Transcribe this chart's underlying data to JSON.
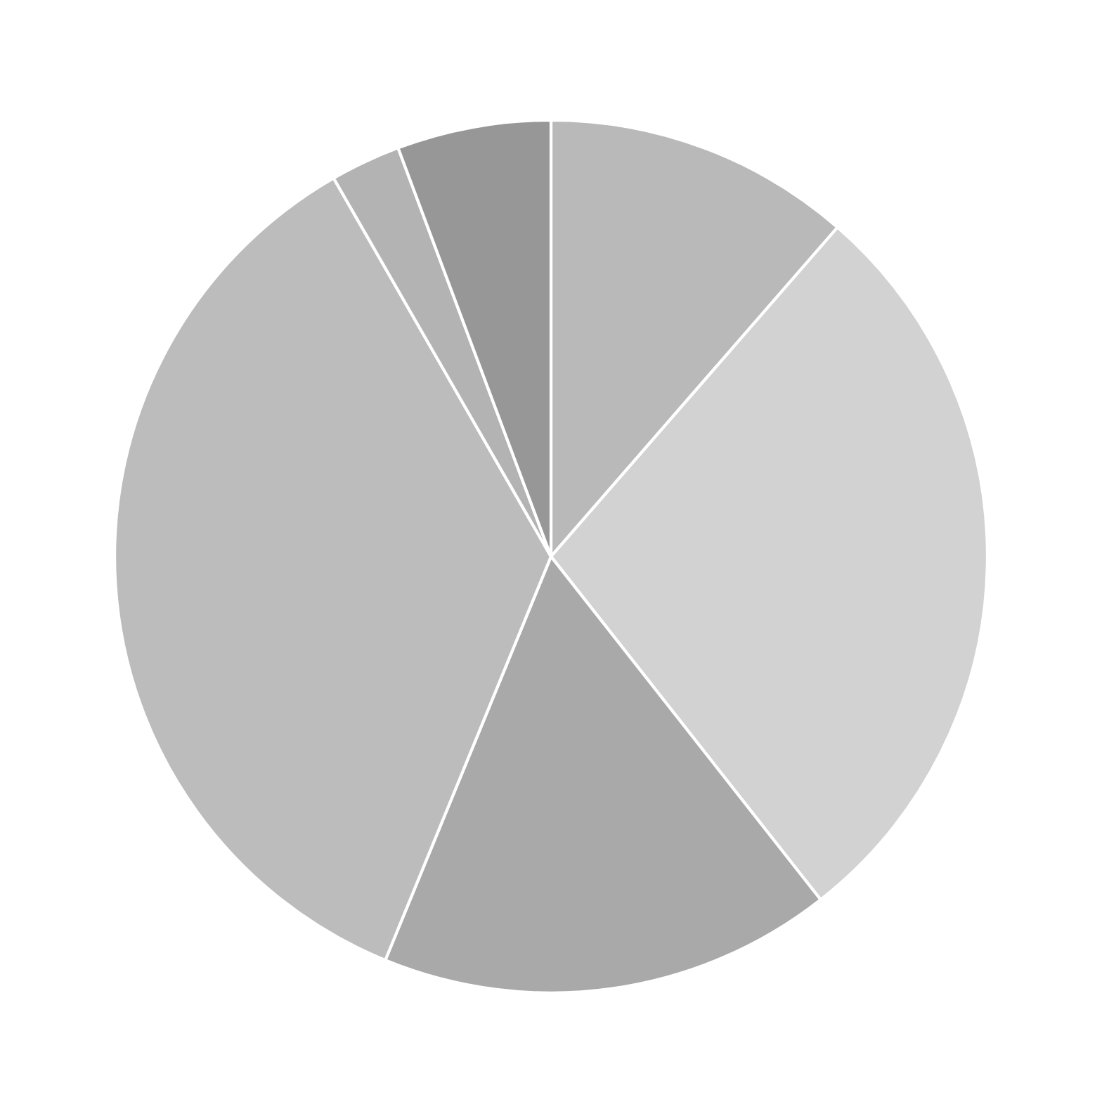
{
  "chart_data": {
    "type": "pie",
    "categories": [
      null,
      null,
      null,
      null,
      null,
      null
    ],
    "values": [
      11.4,
      28.0,
      16.8,
      35.5,
      2.6,
      5.7
    ],
    "colors": [
      "#b9b9b9",
      "#d2d2d2",
      "#a9a9a9",
      "#bcbcbc",
      "#b3b3b3",
      "#979797"
    ]
  }
}
